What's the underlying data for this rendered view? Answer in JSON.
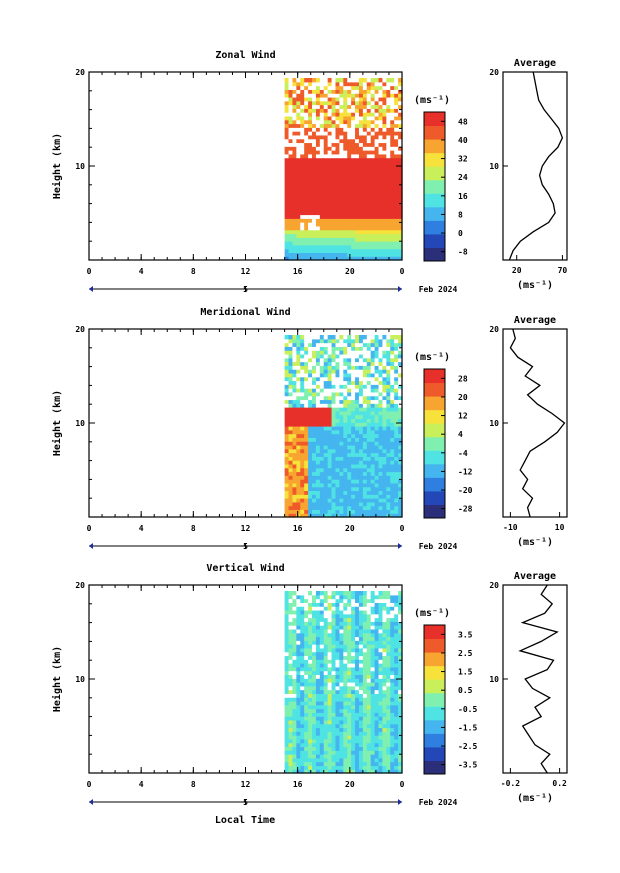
{
  "xlabel": "Local Time",
  "date_label": "Feb 2024",
  "day_label": "5",
  "colors": {
    "palette": [
      "#2b2f7a",
      "#2447b8",
      "#2f7fe0",
      "#45b5ef",
      "#4fe3e3",
      "#7ff0b0",
      "#c9f05a",
      "#f6e23a",
      "#f7a430",
      "#ef5a2a",
      "#e8302a"
    ],
    "line": "#000000",
    "missing": "#ffffff"
  },
  "chart_data": [
    {
      "type": "heatmap",
      "title": "Zonal Wind",
      "ylabel": "Height (km)",
      "xlim": [
        0,
        24
      ],
      "x_ticks": [
        "0",
        "4",
        "8",
        "12",
        "16",
        "20",
        "0"
      ],
      "ylim": [
        0,
        20
      ],
      "y_ticks": [
        "10",
        "20"
      ],
      "data_x_range": [
        15,
        24
      ],
      "colorbar": {
        "label": "(ms⁻¹)",
        "ticks": [
          "48",
          "40",
          "32",
          "24",
          "16",
          "8",
          "0",
          "-8"
        ],
        "range": [
          -12,
          52
        ]
      },
      "profile": {
        "title": "Average",
        "xlabel": "(ms⁻¹)",
        "x_ticks": [
          "20",
          "70"
        ],
        "xlim": [
          5,
          75
        ],
        "y_ticks": [
          "10",
          "20"
        ],
        "heights": [
          0,
          1,
          2,
          3,
          4,
          5,
          6,
          7,
          8,
          9,
          10,
          11,
          12,
          13,
          14,
          15,
          16,
          17,
          18,
          19,
          20
        ],
        "values": [
          12,
          16,
          24,
          38,
          55,
          62,
          60,
          55,
          48,
          45,
          48,
          55,
          65,
          70,
          66,
          58,
          50,
          44,
          42,
          40,
          38
        ]
      }
    },
    {
      "type": "heatmap",
      "title": "Meridional Wind",
      "ylabel": "Height (km)",
      "xlim": [
        0,
        24
      ],
      "x_ticks": [
        "0",
        "4",
        "8",
        "12",
        "16",
        "20",
        "0"
      ],
      "ylim": [
        0,
        20
      ],
      "y_ticks": [
        "10",
        "20"
      ],
      "data_x_range": [
        15,
        24
      ],
      "colorbar": {
        "label": "(ms⁻¹)",
        "ticks": [
          "28",
          "20",
          "12",
          "4",
          "-4",
          "-12",
          "-20",
          "-28"
        ],
        "range": [
          -32,
          32
        ]
      },
      "profile": {
        "title": "Average",
        "xlabel": "(ms⁻¹)",
        "x_ticks": [
          "-10",
          "10"
        ],
        "xlim": [
          -13,
          13
        ],
        "y_ticks": [
          "10",
          "20"
        ],
        "heights": [
          0,
          1,
          2,
          3,
          4,
          5,
          6,
          7,
          8,
          9,
          10,
          11,
          12,
          13,
          14,
          15,
          16,
          17,
          18,
          19,
          20
        ],
        "values": [
          -2,
          -3,
          -1,
          -5,
          -3,
          -6,
          -4,
          -2,
          4,
          9,
          12,
          7,
          1,
          -3,
          2,
          -4,
          -1,
          -7,
          -10,
          -8,
          -9
        ]
      }
    },
    {
      "type": "heatmap",
      "title": "Vertical Wind",
      "ylabel": "Height (km)",
      "xlim": [
        0,
        24
      ],
      "x_ticks": [
        "0",
        "4",
        "8",
        "12",
        "16",
        "20",
        "0"
      ],
      "ylim": [
        0,
        20
      ],
      "y_ticks": [
        "10",
        "20"
      ],
      "data_x_range": [
        15,
        24
      ],
      "colorbar": {
        "label": "(ms⁻¹)",
        "ticks": [
          "3.5",
          "2.5",
          "1.5",
          "0.5",
          "-0.5",
          "-1.5",
          "-2.5",
          "-3.5"
        ],
        "range": [
          -4,
          4
        ]
      },
      "profile": {
        "title": "Average",
        "xlabel": "(ms⁻¹)",
        "x_ticks": [
          "-0.2",
          "0.2"
        ],
        "xlim": [
          -0.26,
          0.26
        ],
        "y_ticks": [
          "10",
          "20"
        ],
        "heights": [
          0,
          1,
          2,
          3,
          4,
          5,
          6,
          7,
          8,
          9,
          10,
          11,
          12,
          13,
          14,
          15,
          16,
          17,
          18,
          19,
          20
        ],
        "values": [
          0.1,
          0.05,
          0.12,
          0.0,
          -0.05,
          -0.1,
          0.05,
          0.0,
          0.12,
          -0.02,
          -0.08,
          0.1,
          0.15,
          -0.12,
          0.05,
          0.18,
          -0.1,
          0.08,
          0.14,
          0.05,
          0.1
        ]
      }
    }
  ]
}
